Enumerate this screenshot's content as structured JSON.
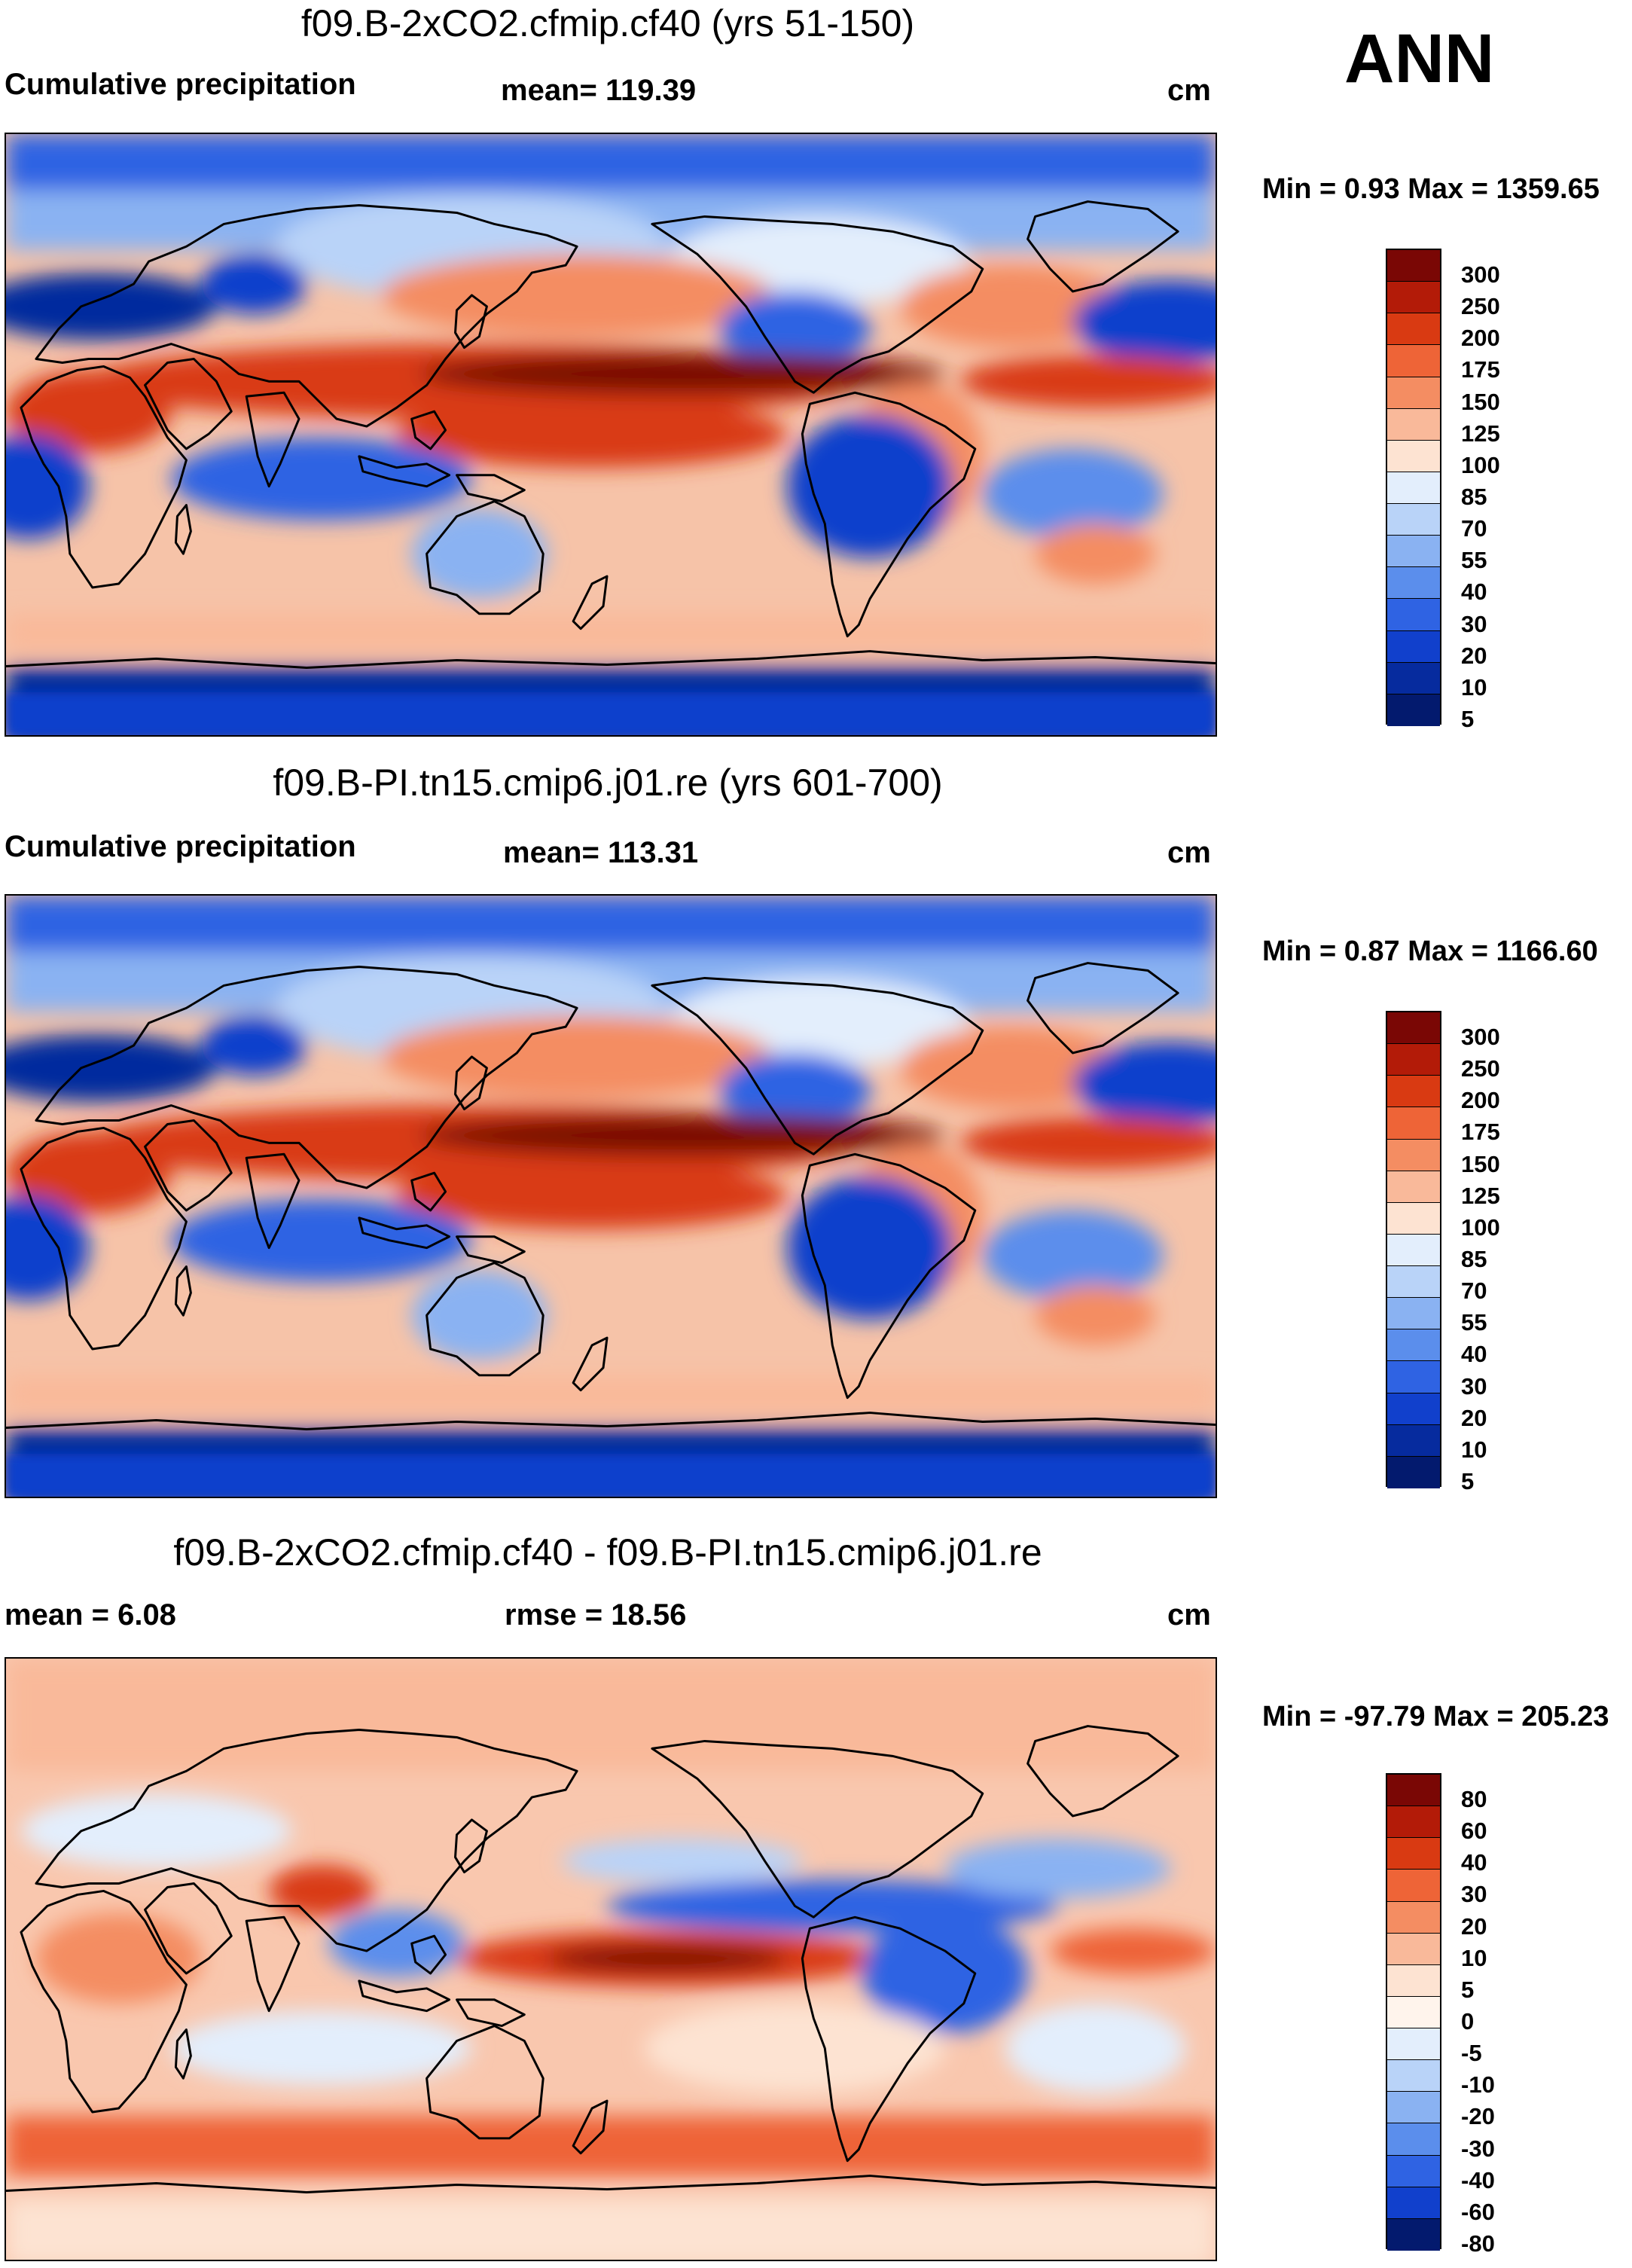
{
  "season": "ANN",
  "panels": [
    {
      "title": "f09.B-2xCO2.cfmip.cf40 (yrs 51-150)",
      "left_label": "Cumulative precipitation",
      "center_label": "mean= 119.39",
      "units": "cm",
      "minmax": "Min =   0.93 Max = 1359.65"
    },
    {
      "title": "f09.B-PI.tn15.cmip6.j01.re (yrs 601-700)",
      "left_label": "Cumulative precipitation",
      "center_label": "mean= 113.31",
      "units": "cm",
      "minmax": "Min =   0.87 Max = 1166.60"
    },
    {
      "title": "f09.B-2xCO2.cfmip.cf40 - f09.B-PI.tn15.cmip6.j01.re",
      "left_label": "mean =   6.08",
      "center_label": "rmse =  18.56",
      "units": "cm",
      "minmax": "Min = -97.79 Max = 205.23"
    }
  ],
  "colorbars": {
    "precip": {
      "labels": [
        "300",
        "250",
        "200",
        "175",
        "150",
        "125",
        "100",
        "85",
        "70",
        "55",
        "40",
        "30",
        "20",
        "10",
        "5"
      ],
      "colors": [
        "#7a0705",
        "#b31b08",
        "#d93a12",
        "#ee6437",
        "#f48d62",
        "#f9b99a",
        "#fde3d2",
        "#e3eefc",
        "#b9d3f8",
        "#8ab2f2",
        "#5b8eec",
        "#2f63e3",
        "#1140cc",
        "#062b9e",
        "#031a6e"
      ]
    },
    "diff": {
      "labels": [
        "80",
        "60",
        "40",
        "30",
        "20",
        "10",
        "5",
        "0",
        "-5",
        "-10",
        "-20",
        "-30",
        "-40",
        "-60",
        "-80"
      ],
      "colors": [
        "#7a0705",
        "#b31b08",
        "#d93a12",
        "#ee6437",
        "#f48d62",
        "#f9b99a",
        "#fde3d2",
        "#fff4ec",
        "#e3eefc",
        "#b9d3f8",
        "#8ab2f2",
        "#5b8eec",
        "#2f63e3",
        "#1140cc",
        "#031a6e"
      ]
    }
  }
}
